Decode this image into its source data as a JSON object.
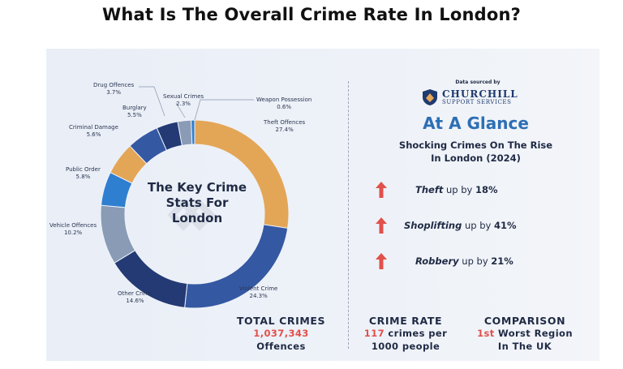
{
  "title": "What Is The Overall Crime Rate In London?",
  "chart_data": {
    "type": "pie",
    "donut": true,
    "center_label": [
      "The Key Crime",
      "Stats For",
      "London"
    ],
    "slices": [
      {
        "name": "Theft Offences",
        "value_label": "27.4%",
        "value": 27.4,
        "color": "#e3a657"
      },
      {
        "name": "Violent Crime",
        "value_label": "24.3%",
        "value": 24.3,
        "color": "#3558a3"
      },
      {
        "name": "Other Crime",
        "value_label": "14.6%",
        "value": 14.6,
        "color": "#233a75"
      },
      {
        "name": "Vehicle Offences",
        "value_label": "10.2%",
        "value": 10.2,
        "color": "#8a9bb6"
      },
      {
        "name": "Public Order",
        "value_label": "5.8%",
        "value": 5.8,
        "color": "#2f7fd0"
      },
      {
        "name": "Criminal Damage",
        "value_label": "5.6%",
        "value": 5.6,
        "color": "#e3a657"
      },
      {
        "name": "Burglary",
        "value_label": "5.5%",
        "value": 5.5,
        "color": "#3558a3"
      },
      {
        "name": "Drug Offences",
        "value_label": "3.7%",
        "value": 3.7,
        "color": "#233a75"
      },
      {
        "name": "Sexual Crimes",
        "value_label": "2.3%",
        "value": 2.3,
        "color": "#8a9bb6"
      },
      {
        "name": "Weapon Possession",
        "value_label": "0.6%",
        "value": 0.6,
        "color": "#2f7fd0"
      }
    ]
  },
  "source": {
    "label": "Data sourced by",
    "brand": "CHURCHILL",
    "brand_sub": "SUPPORT SERVICES",
    "logo_icon": "shield-icon"
  },
  "glance": {
    "heading": "At A Glance",
    "subheading": [
      "Shocking Crimes On The Rise",
      "In London (2024)"
    ],
    "trends": [
      {
        "name": "Theft",
        "mid": " up by ",
        "value": "18%",
        "icon": "up-arrow-icon"
      },
      {
        "name": "Shoplifting",
        "mid": " up by ",
        "value": "41%",
        "icon": "up-arrow-icon"
      },
      {
        "name": "Robbery",
        "mid": " up by ",
        "value": "21%",
        "icon": "up-arrow-icon"
      }
    ]
  },
  "stats": {
    "total": {
      "title": "TOTAL CRIMES",
      "value": "1,037,343",
      "unit": "Offences"
    },
    "rate": {
      "title": "CRIME RATE",
      "value": "117",
      "line1_rest": " crimes per",
      "line2": "1000 people"
    },
    "comparison": {
      "title": "COMPARISON",
      "rank": "1st",
      "line1_rest": " Worst Region",
      "line2": "In The UK"
    }
  },
  "colors": {
    "accent_blue": "#2d6fb5",
    "red": "#e2504a",
    "text_dark": "#1f2a44"
  }
}
